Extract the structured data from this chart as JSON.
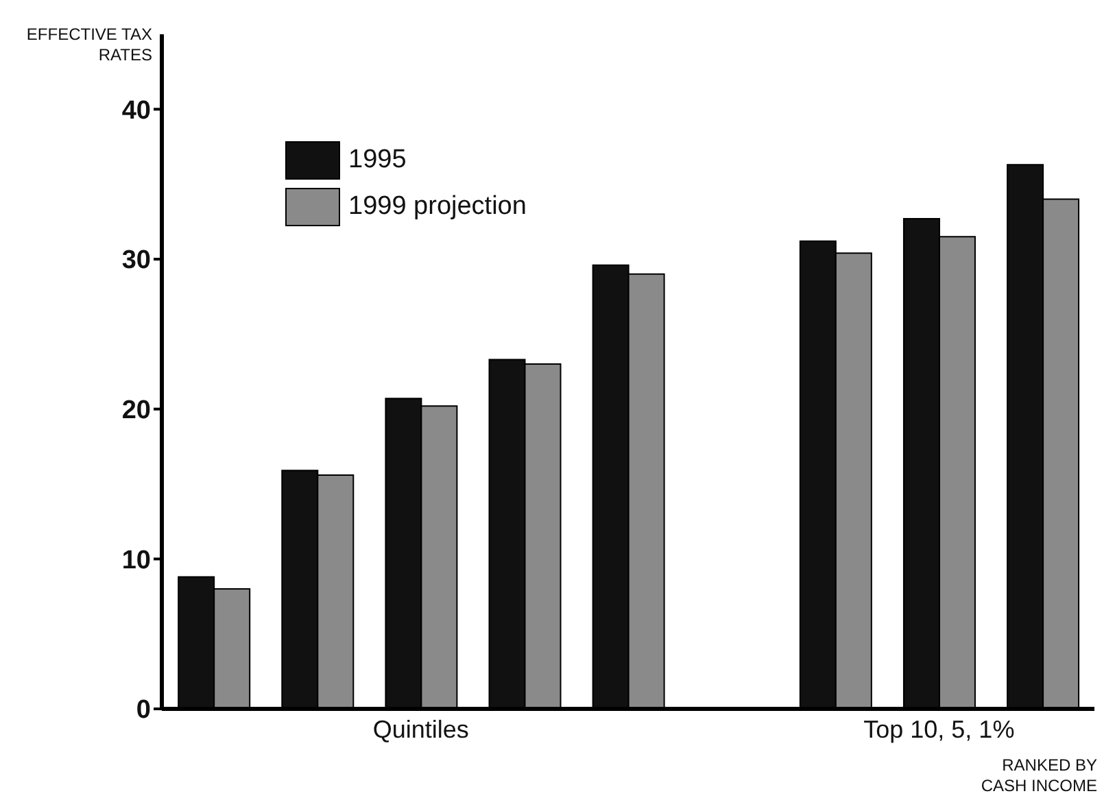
{
  "chart_data": {
    "type": "bar",
    "ylabel": "EFFECTIVE TAX RATES",
    "xlabel": "RANKED BY CASH INCOME",
    "categories": [
      null,
      null,
      "Quintiles",
      null,
      null,
      null,
      null,
      "Top 10, 5, 1%",
      null
    ],
    "series": [
      {
        "name": "1995",
        "color": "#111111",
        "values": [
          8.8,
          15.9,
          20.7,
          23.3,
          29.6,
          null,
          31.2,
          32.7,
          36.3
        ]
      },
      {
        "name": "1999 projection",
        "color": "#8a8a8a",
        "values": [
          8.0,
          15.6,
          20.2,
          23.0,
          29.0,
          null,
          30.4,
          31.5,
          34.0
        ]
      }
    ],
    "ylim": [
      0,
      45
    ],
    "yticks": [
      0,
      10,
      20,
      30,
      40
    ],
    "grid": false,
    "legend": "top left"
  }
}
